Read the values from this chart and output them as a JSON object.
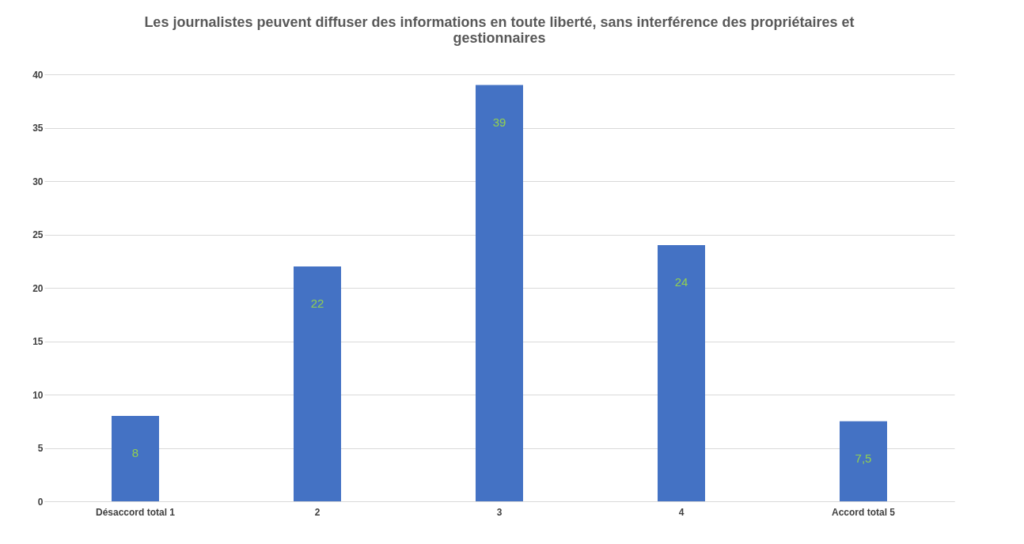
{
  "chart_data": {
    "type": "bar",
    "title": "Les journalistes peuvent diffuser des informations en toute liberté, sans interférence des propriétaires et gestionnaires",
    "categories": [
      "Désaccord total 1",
      "2",
      "3",
      "4",
      "Accord total 5"
    ],
    "values": [
      8,
      22,
      39,
      24,
      7.5
    ],
    "value_labels": [
      "8",
      "22",
      "39",
      "24",
      "7,5"
    ],
    "color": "#4472c4",
    "ylim": [
      0,
      40
    ],
    "yticks": [
      0,
      5,
      10,
      15,
      20,
      25,
      30,
      35,
      40
    ],
    "grid": "y"
  }
}
